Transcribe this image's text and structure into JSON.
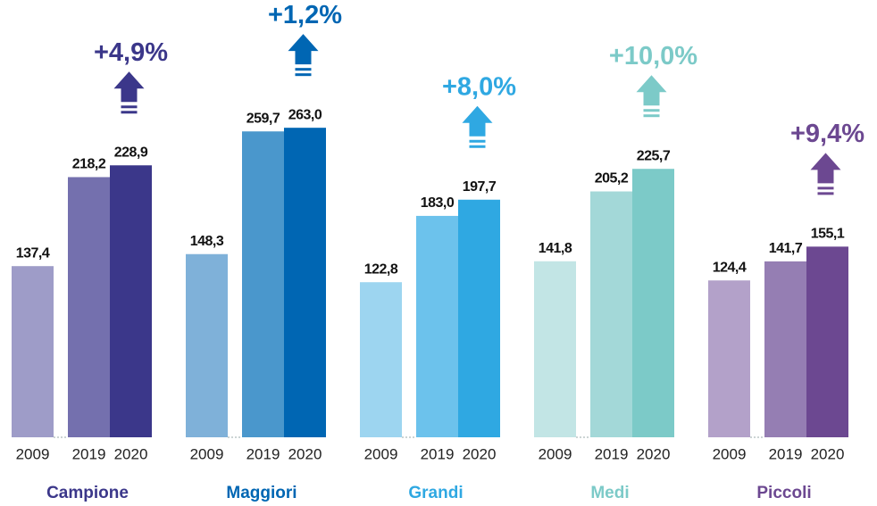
{
  "chart_data": {
    "type": "bar",
    "years": [
      "2009",
      "2019",
      "2020"
    ],
    "ylim": [
      -18,
      379
    ],
    "groups": [
      {
        "name": "Campione",
        "values": [
          137.4,
          218.2,
          228.9
        ],
        "value_labels": [
          "137,4",
          "218,2",
          "228,9"
        ],
        "colors": [
          "#9e9cc8",
          "#7470ae",
          "#3b378a"
        ],
        "change": "+4,9%"
      },
      {
        "name": "Maggiori",
        "values": [
          148.3,
          259.7,
          263.0
        ],
        "value_labels": [
          "148,3",
          "259,7",
          "263,0"
        ],
        "colors": [
          "#7fb1d9",
          "#4a97cc",
          "#0066b3"
        ],
        "change": "+1,2%"
      },
      {
        "name": "Grandi",
        "values": [
          122.8,
          183.0,
          197.7
        ],
        "value_labels": [
          "122,8",
          "183,0",
          "197,7"
        ],
        "colors": [
          "#9dd5f0",
          "#6cc2ec",
          "#2fa8e2"
        ],
        "change": "+8,0%"
      },
      {
        "name": "Medi",
        "values": [
          141.8,
          205.2,
          225.7
        ],
        "value_labels": [
          "141,8",
          "205,2",
          "225,7"
        ],
        "colors": [
          "#c2e5e5",
          "#a3d8d8",
          "#7ccac8"
        ],
        "change": "+10,0%"
      },
      {
        "name": "Piccoli",
        "values": [
          124.4,
          141.7,
          155.1
        ],
        "value_labels": [
          "124,4",
          "141,7",
          "155,1"
        ],
        "colors": [
          "#b3a1c9",
          "#957eb3",
          "#6c4891"
        ],
        "change": "+9,4%"
      }
    ]
  }
}
